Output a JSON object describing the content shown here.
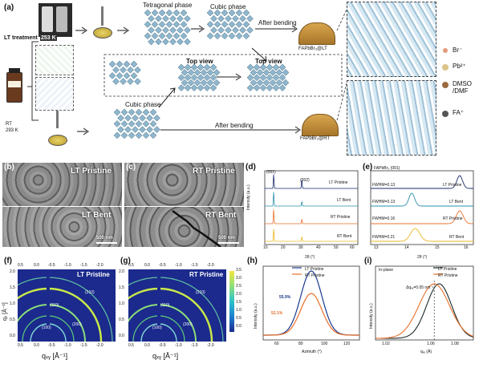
{
  "panel_a": {
    "letter": "(a)",
    "lt_treatment": "LT treatment",
    "temp_253": "253 K",
    "cooling": "Cooling",
    "rt": "RT",
    "temp_293": "293 K",
    "tetragonal": "Tetragonal phase",
    "cubic_top": "Cubic phase",
    "cubic_bottom": "Cubic phase",
    "top_view_1": "Top view",
    "top_view_2": "Top view",
    "after_bending_1": "After bending",
    "after_bending_2": "After bending",
    "sample_lt": "FAPbBr₃@LT",
    "sample_rt": "FAPbBr₃@RT",
    "legend": [
      {
        "label": "Br⁻",
        "color": "#e39a7c"
      },
      {
        "label": "Pb²⁺",
        "color": "#dcc48a"
      },
      {
        "label": "DMSO\n/DMF",
        "color": "#9a6a3e"
      },
      {
        "label": "FA⁺",
        "color": "#555555"
      }
    ]
  },
  "panel_b": {
    "letter": "(b)",
    "top_label": "LT Pristine",
    "bottom_label": "LT Bent",
    "scale": "500 nm"
  },
  "panel_c": {
    "letter": "(c)",
    "top_label": "RT Pristine",
    "bottom_label": "RT Bent",
    "scale": "500 nm"
  },
  "panel_d": {
    "letter": "(d)",
    "peak_001": "(001)",
    "peak_002": "(002)",
    "ylabel": "Intensity (a.u.)",
    "xlabel": "2θ (°)",
    "xticks": [
      "10",
      "20",
      "30",
      "40",
      "50",
      "60"
    ],
    "curves": [
      {
        "name": "LT Pristine",
        "color": "#1a2a6c"
      },
      {
        "name": "LT Bent",
        "color": "#2a8fa8"
      },
      {
        "name": "RT Pristine",
        "color": "#e8702a"
      },
      {
        "name": "RT Bent",
        "color": "#e8b820"
      }
    ]
  },
  "panel_e": {
    "letter": "(e)",
    "title": "FAPbBr₃ (001)",
    "xlabel": "2θ (°)",
    "xticks": [
      "13",
      "14",
      "15",
      "16"
    ],
    "fwhm": [
      "FWHM=0.13",
      "FWHM=0.13",
      "FWHM=0.16",
      "FWHM=0.21"
    ],
    "curves": [
      "LT Pristine",
      "LT Bent",
      "RT Pristine",
      "RT Bent"
    ]
  },
  "panel_f": {
    "letter": "(f)",
    "label": "LT Pristine",
    "rings": [
      "(210)",
      "(110)",
      "(100)",
      "(200)"
    ],
    "top_ticks": [
      "0.5",
      "0.0",
      "-0.5",
      "-1.0",
      "-1.5",
      "-2.0"
    ],
    "bottom_ticks": [
      "0.5",
      "0.0",
      "-0.5",
      "-1.0",
      "-1.5",
      "-2.0"
    ],
    "yticks": [
      "2.0",
      "1.5",
      "1.0",
      "0.5",
      "0.0"
    ],
    "ylabel": "qₓ [Å⁻¹]",
    "xlabel": "qₓᵧ [Å⁻¹]"
  },
  "panel_g": {
    "letter": "(g)",
    "label": "RT Pristine",
    "rings": [
      "(210)",
      "(110)",
      "(100)",
      "(200)"
    ],
    "top_ticks": [
      "0.5",
      "0.0",
      "-0.5",
      "-1.0",
      "-1.5",
      "-2.0"
    ],
    "bottom_ticks": [
      "0.5",
      "0.0",
      "-0.5",
      "-1.0",
      "-1.5",
      "-2.0"
    ],
    "yticks": [
      "2.0",
      "1.5",
      "1.0",
      "0.5",
      "0.0"
    ],
    "colorbar": [
      "3.5",
      "3.0",
      "2.5",
      "2.0",
      "1.5",
      "1.0",
      "0.5",
      "0.0"
    ],
    "xlabel": "qₓᵧ [Å⁻¹]"
  },
  "panel_h": {
    "letter": "(h)",
    "legend": [
      "LT Pristine",
      "RT Pristine"
    ],
    "annot_1": "55.9%",
    "annot_2": "52.1%",
    "ylabel": "Intensity (a.u.)",
    "xlabel": "Azimuth (°)",
    "xticks": [
      "60",
      "80",
      "100",
      "120"
    ]
  },
  "panel_i": {
    "letter": "(i)",
    "title": "In-plane",
    "legend": [
      "LT Pristine",
      "RT Pristine"
    ],
    "annot": "Δqₓᵧ=0.05 nm⁻¹",
    "ylabel": "Intensity (a.u.)",
    "xlabel": "qₓᵧ (Å)",
    "xticks": [
      "1.02",
      "1.06",
      "1.08"
    ]
  },
  "chart_data": [
    {
      "type": "line",
      "panel": "d",
      "xlabel": "2θ (°)",
      "ylabel": "Intensity (a.u.)",
      "xlim": [
        10,
        60
      ],
      "peaks_x": [
        14.8,
        29.9
      ],
      "series": [
        {
          "name": "LT Pristine",
          "peaks": [
            14.8,
            29.9
          ]
        },
        {
          "name": "LT Bent",
          "peaks": [
            14.8,
            29.9
          ]
        },
        {
          "name": "RT Pristine",
          "peaks": [
            14.8,
            29.9
          ]
        },
        {
          "name": "RT Bent",
          "peaks": [
            14.8,
            29.9
          ]
        }
      ]
    },
    {
      "type": "line",
      "panel": "e",
      "xlabel": "2θ (°)",
      "xlim": [
        13,
        16
      ],
      "series": [
        {
          "name": "LT Pristine",
          "peak": 15.6,
          "fwhm": 0.13
        },
        {
          "name": "LT Bent",
          "peak": 14.2,
          "fwhm": 0.13
        },
        {
          "name": "RT Pristine",
          "peak": 15.6,
          "fwhm": 0.16
        },
        {
          "name": "RT Bent",
          "peak": 14.3,
          "fwhm": 0.21
        }
      ]
    },
    {
      "type": "line",
      "panel": "h",
      "xlabel": "Azimuth (°)",
      "xlim": [
        45,
        135
      ],
      "series": [
        {
          "name": "LT Pristine",
          "center": 90,
          "peak_fraction": 0.559
        },
        {
          "name": "RT Pristine",
          "center": 90,
          "peak_fraction": 0.521
        }
      ]
    },
    {
      "type": "line",
      "panel": "i",
      "xlabel": "qₓᵧ (Å)",
      "xlim": [
        1.0,
        1.1
      ],
      "series": [
        {
          "name": "LT Pristine",
          "peak": 1.065
        },
        {
          "name": "RT Pristine",
          "peak": 1.06
        }
      ]
    }
  ]
}
